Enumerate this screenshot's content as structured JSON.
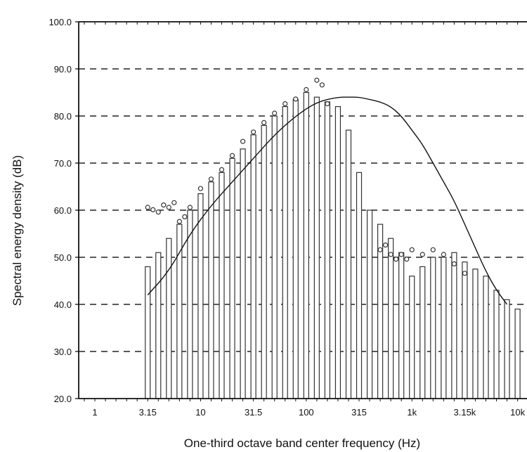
{
  "chart_data": {
    "type": "bar",
    "title": "",
    "xlabel": "One-third octave band center frequency (Hz)",
    "ylabel": "Spectral energy density (dB)",
    "ylim": [
      20,
      100
    ],
    "yticks": [
      "20.0",
      "30.0",
      "40.0",
      "50.0",
      "60.0",
      "70.0",
      "80.0",
      "90.0",
      "100.0"
    ],
    "grid": "dashed-horizontal",
    "band_index_range": [
      -1,
      40
    ],
    "xtick_labels": [
      {
        "band": 0,
        "label": "1"
      },
      {
        "band": 5,
        "label": "3.15"
      },
      {
        "band": 10,
        "label": "10"
      },
      {
        "band": 15,
        "label": "31.5"
      },
      {
        "band": 20,
        "label": "100"
      },
      {
        "band": 25,
        "label": "315"
      },
      {
        "band": 30,
        "label": "1k"
      },
      {
        "band": 35,
        "label": "3.15k"
      },
      {
        "band": 40,
        "label": "10k"
      }
    ],
    "bar_series": {
      "bands": [
        5,
        6,
        7,
        8,
        9,
        10,
        11,
        12,
        13,
        14,
        15,
        16,
        17,
        18,
        19,
        20,
        21,
        22,
        23,
        24,
        25,
        26,
        27,
        28,
        29,
        30,
        31,
        32,
        33,
        34,
        35,
        36,
        37,
        38,
        39,
        40
      ],
      "values": [
        48,
        51,
        54,
        57,
        60,
        63.5,
        66,
        68,
        71,
        73,
        76,
        78,
        80,
        82,
        83.5,
        85,
        84,
        83,
        82,
        77,
        68,
        60,
        57,
        54,
        51,
        46,
        48,
        50,
        50,
        51,
        49,
        47.5,
        46,
        43,
        41,
        39
      ]
    },
    "circle_series": {
      "bands": [
        5,
        5.5,
        6,
        6.5,
        7,
        7.5,
        8,
        8.5,
        9,
        10,
        11,
        12,
        13,
        14,
        15,
        16,
        17,
        18,
        19,
        20,
        21,
        21.5,
        22,
        27,
        27.5,
        28,
        28.5,
        29,
        29.5,
        30,
        31,
        32,
        33,
        34,
        35
      ],
      "values": [
        60,
        59.5,
        59,
        60.5,
        60,
        61,
        57,
        58,
        60,
        64,
        66,
        68,
        71,
        74,
        76,
        78,
        80,
        82,
        83,
        85,
        87,
        86,
        82,
        51,
        52,
        50,
        49,
        50,
        49,
        51,
        50,
        51,
        50,
        48,
        46
      ]
    },
    "curve_series": {
      "bands": [
        5,
        7,
        9,
        11,
        13,
        15,
        17,
        19,
        21,
        23,
        24,
        25,
        26,
        27,
        28,
        29,
        30,
        31,
        32,
        33,
        34,
        35,
        36,
        37,
        38,
        39
      ],
      "values": [
        42,
        47,
        55,
        61,
        66,
        71,
        76,
        80,
        83,
        84,
        84,
        84,
        83.5,
        83,
        82,
        80,
        77,
        74,
        70,
        66,
        62,
        57,
        52,
        47,
        43,
        40
      ]
    }
  }
}
